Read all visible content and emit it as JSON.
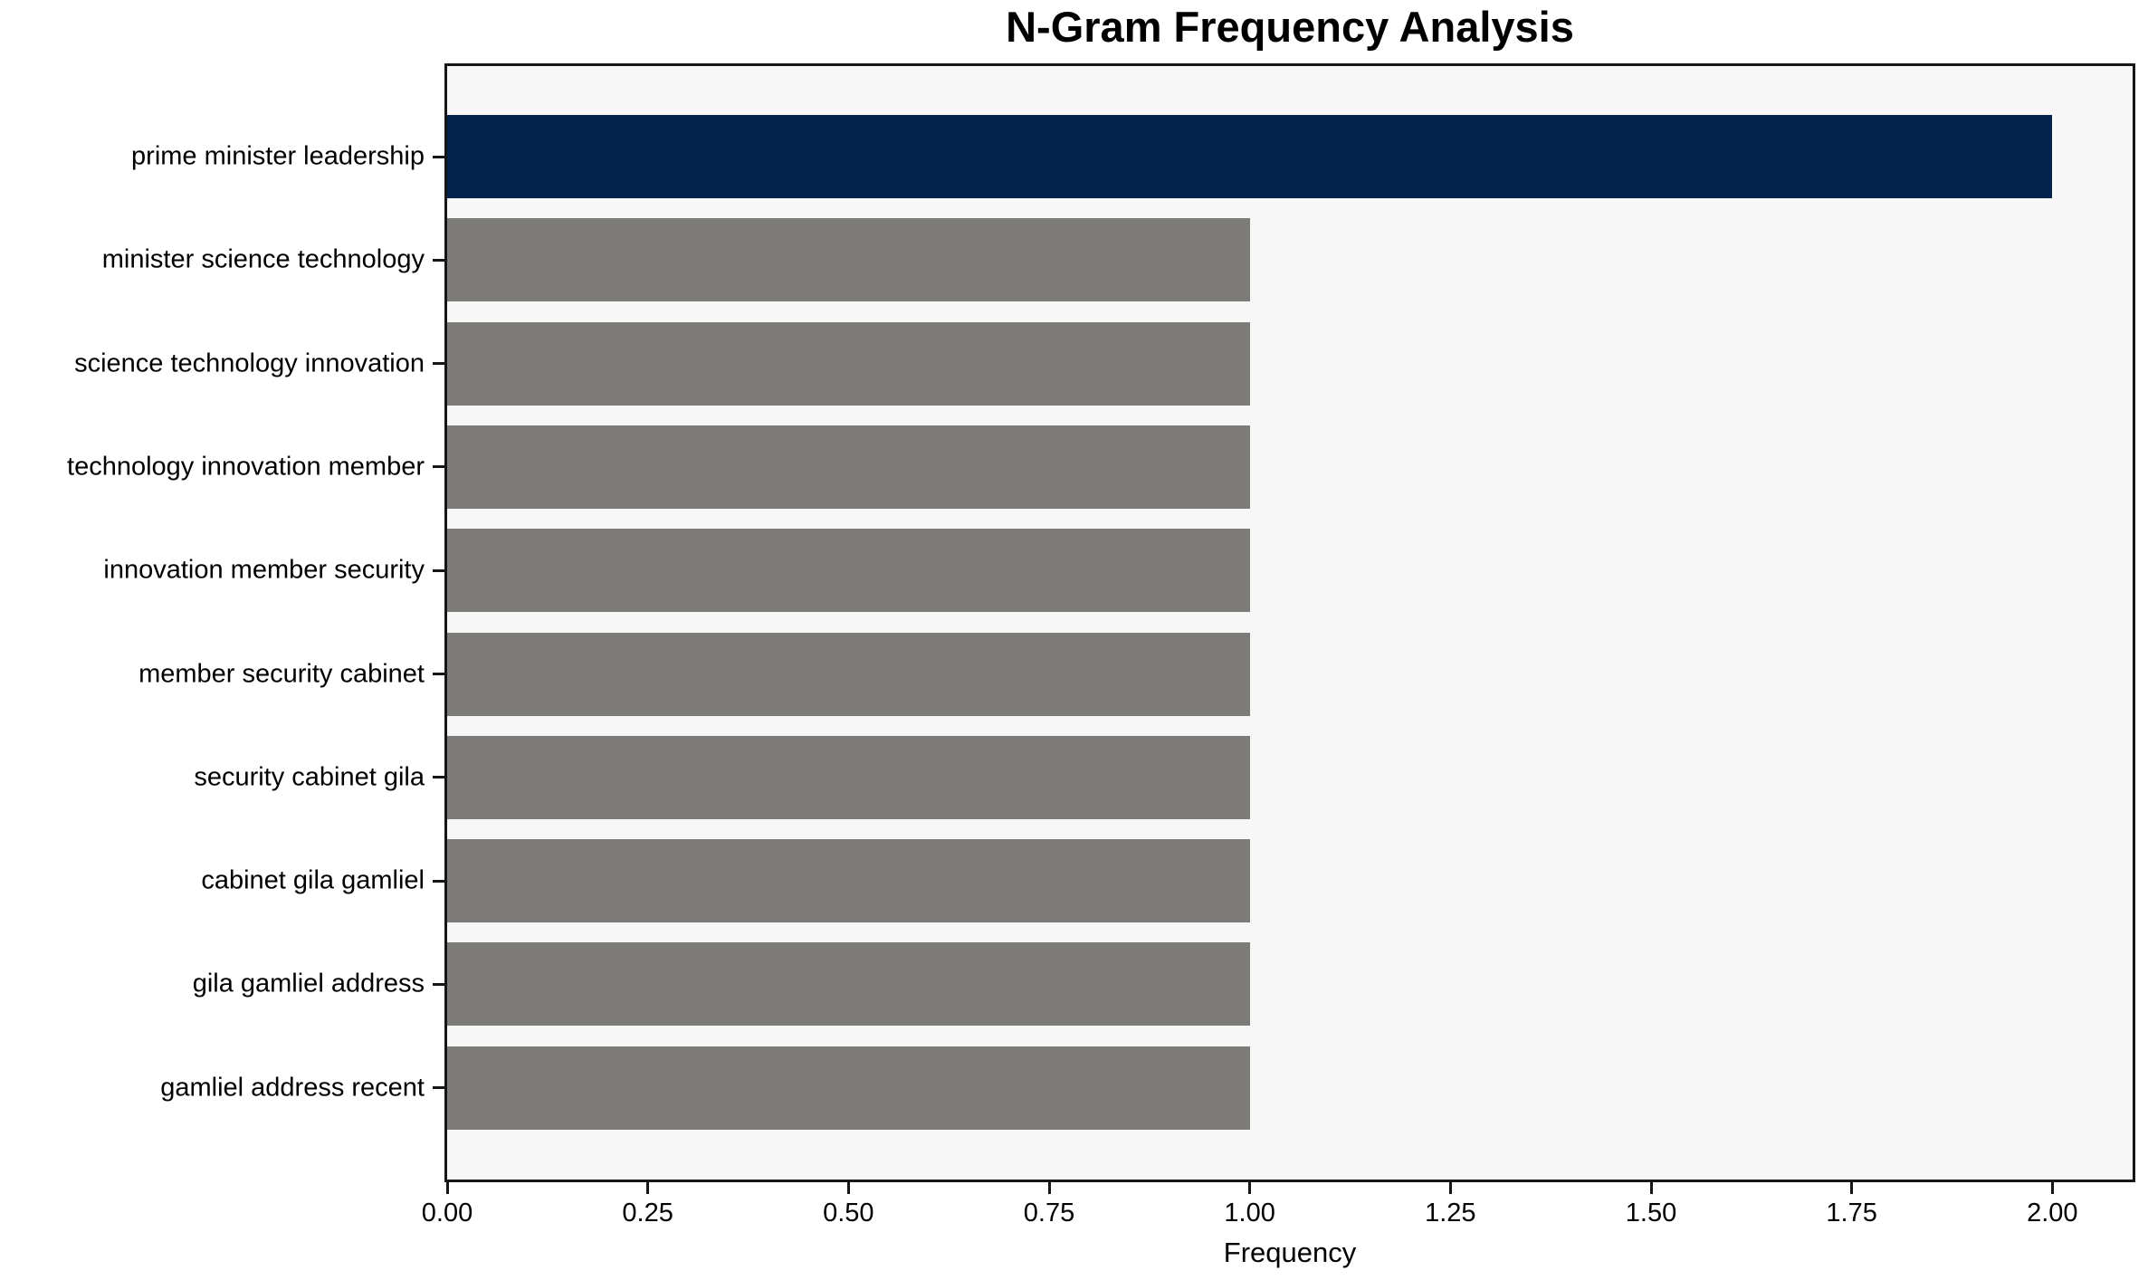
{
  "chart_data": {
    "type": "bar",
    "orientation": "horizontal",
    "title": "N-Gram Frequency Analysis",
    "xlabel": "Frequency",
    "ylabel": "",
    "categories": [
      "prime minister leadership",
      "minister science technology",
      "science technology innovation",
      "technology innovation member",
      "innovation member security",
      "member security cabinet",
      "security cabinet gila",
      "cabinet gila gamliel",
      "gila gamliel address",
      "gamliel address recent"
    ],
    "values": [
      2,
      1,
      1,
      1,
      1,
      1,
      1,
      1,
      1,
      1
    ],
    "xlim": [
      0,
      2.1
    ],
    "xticks": [
      {
        "value": 0.0,
        "label": "0.00"
      },
      {
        "value": 0.25,
        "label": "0.25"
      },
      {
        "value": 0.5,
        "label": "0.50"
      },
      {
        "value": 0.75,
        "label": "0.75"
      },
      {
        "value": 1.0,
        "label": "1.00"
      },
      {
        "value": 1.25,
        "label": "1.25"
      },
      {
        "value": 1.5,
        "label": "1.50"
      },
      {
        "value": 1.75,
        "label": "1.75"
      },
      {
        "value": 2.0,
        "label": "2.00"
      }
    ],
    "grid": false,
    "legend": "none",
    "highlight_index": 0,
    "colors": {
      "highlight_bar": "#03224c",
      "default_bar": "#7d7b77",
      "plot_background": "#f7f7f7",
      "figure_background": "#ffffff",
      "spine": "#161616",
      "text": "#000000"
    }
  }
}
